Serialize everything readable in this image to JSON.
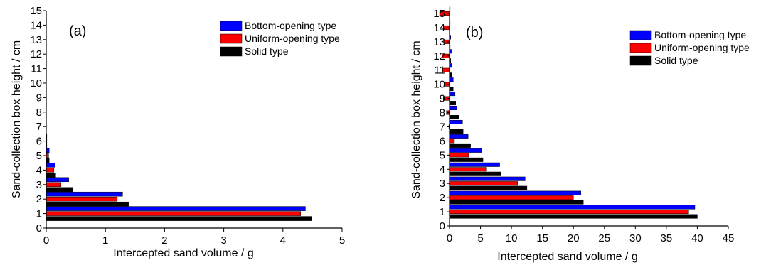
{
  "chart_data": [
    {
      "type": "bar",
      "orientation": "horizontal",
      "panel_label": "(a)",
      "xlabel": "Intercepted sand volume / g",
      "ylabel": "Sand-collection box height / cm",
      "xlim": [
        0,
        5
      ],
      "ylim": [
        0,
        15
      ],
      "xticks": [
        "0",
        "1",
        "2",
        "3",
        "4",
        "5"
      ],
      "yticks": [
        "0",
        "1",
        "2",
        "3",
        "4",
        "5",
        "6",
        "7",
        "8",
        "9",
        "10",
        "11",
        "12",
        "13",
        "14",
        "15"
      ],
      "legend_position": "top-right",
      "categories": [
        1,
        2,
        3,
        4,
        5,
        6
      ],
      "series": [
        {
          "name": "Bottom-opening type",
          "color": "#0000ff",
          "values": [
            4.38,
            1.29,
            0.38,
            0.15,
            0.05,
            0.01
          ]
        },
        {
          "name": "Uniform-opening type",
          "color": "#ff0000",
          "values": [
            4.3,
            1.2,
            0.25,
            0.13,
            0.04,
            0.01
          ]
        },
        {
          "name": "Solid type",
          "color": "#000000",
          "values": [
            4.48,
            1.39,
            0.45,
            0.16,
            0.05,
            0.01
          ]
        }
      ]
    },
    {
      "type": "bar",
      "orientation": "horizontal",
      "panel_label": "(b)",
      "xlabel": "Intercepted sand volume / g",
      "ylabel": "Sand-collection box height / cm",
      "xlim": [
        0,
        45
      ],
      "ylim": [
        0,
        15
      ],
      "xticks": [
        "0",
        "5",
        "10",
        "15",
        "20",
        "25",
        "30",
        "35",
        "40",
        "45"
      ],
      "yticks": [
        "0",
        "1",
        "2",
        "3",
        "4",
        "5",
        "6",
        "7",
        "8",
        "9",
        "10",
        "11",
        "12",
        "13",
        "14",
        "15"
      ],
      "legend_position": "top-right",
      "categories": [
        1,
        2,
        3,
        4,
        5,
        6,
        7,
        8,
        9,
        10,
        11,
        12,
        13,
        14,
        15
      ],
      "series": [
        {
          "name": "Bottom-opening type",
          "color": "#0000ff",
          "values": [
            39.6,
            21.2,
            12.2,
            8.1,
            5.2,
            3.0,
            2.1,
            1.2,
            0.9,
            0.6,
            0.4,
            0.3,
            0.2,
            0.1,
            0.1
          ]
        },
        {
          "name": "Uniform-opening type",
          "color": "#ff0000",
          "values": [
            38.6,
            20.0,
            11.0,
            6.0,
            3.1,
            0.8,
            -0.1,
            -0.5,
            -1.0,
            -0.8,
            -1.1,
            -1.2,
            -0.9,
            -1.0,
            -1.6
          ]
        },
        {
          "name": "Solid type",
          "color": "#000000",
          "values": [
            40.0,
            21.6,
            12.5,
            8.3,
            5.4,
            3.4,
            2.2,
            1.5,
            1.0,
            0.6,
            0.4,
            0.2,
            0.1,
            0.0,
            0.0
          ]
        }
      ]
    }
  ]
}
